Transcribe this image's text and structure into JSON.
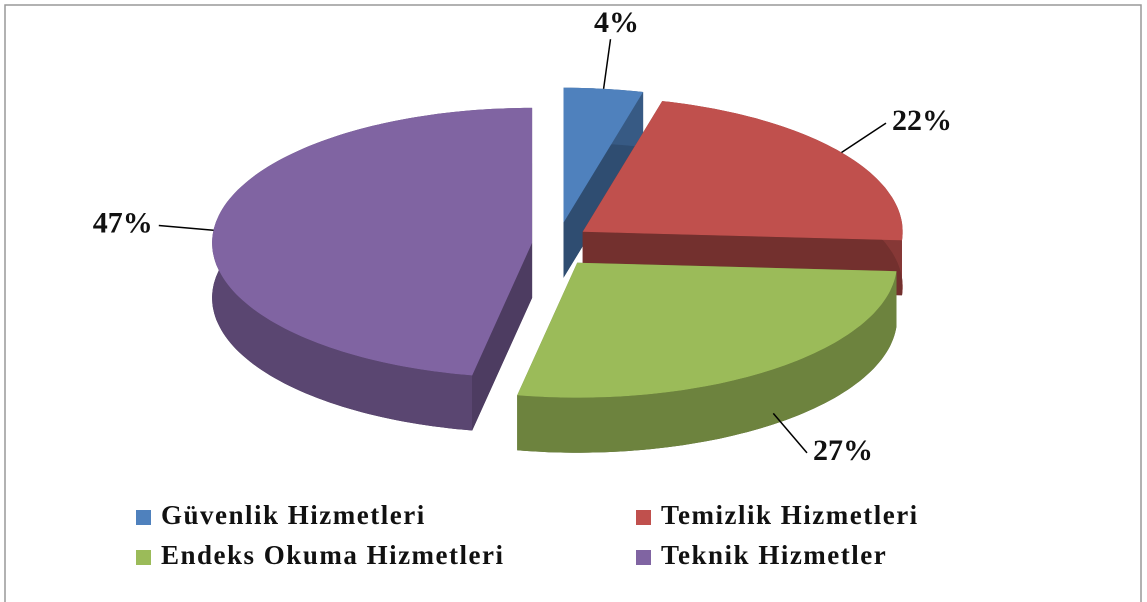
{
  "chart_data": {
    "type": "pie",
    "categories": [
      "Güvenlik Hizmetleri",
      "Temizlik Hizmetleri",
      "Endeks Okuma Hizmetleri",
      "Teknik Hizmetler"
    ],
    "values": [
      4,
      22,
      27,
      47
    ],
    "value_labels": [
      "4%",
      "22%",
      "27%",
      "47%"
    ],
    "colors": [
      "#4f81bd",
      "#c0504d",
      "#9bbb59",
      "#8064a2"
    ]
  }
}
